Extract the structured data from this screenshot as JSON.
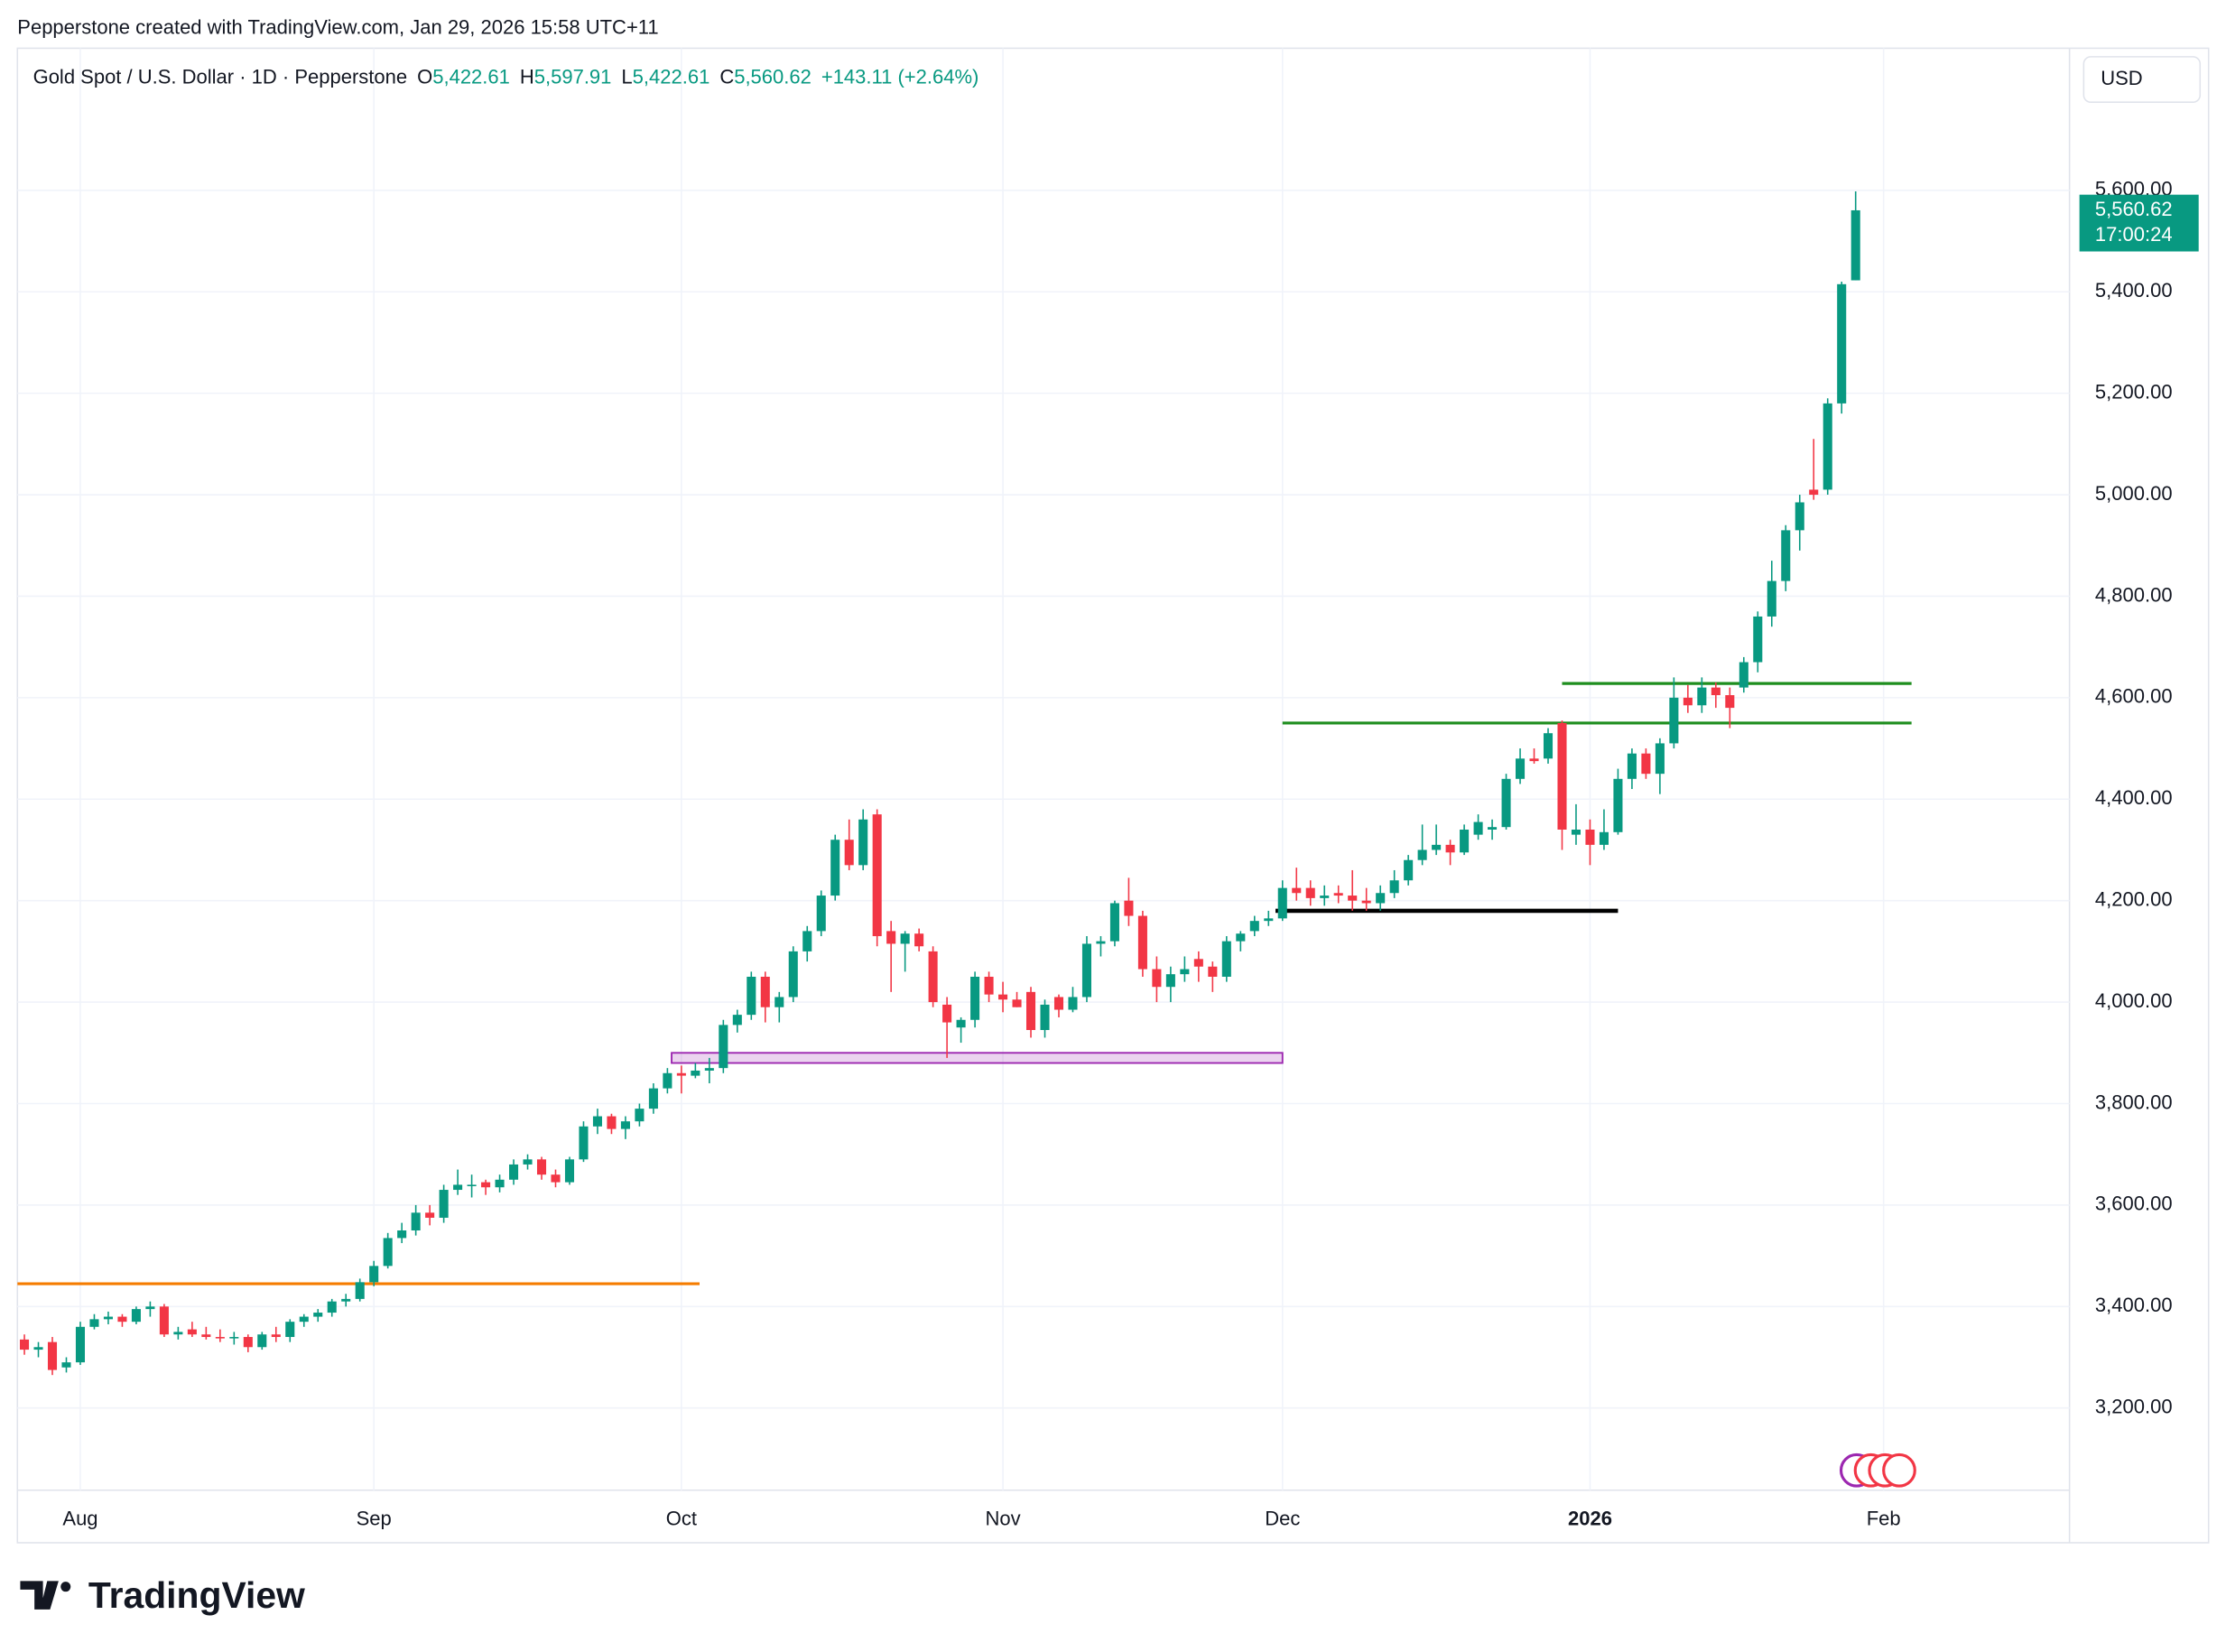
{
  "chart_data": {
    "type": "candlestick",
    "attribution": "Pepperstone created with TradingView.com, Jan 29, 2026 15:58 UTC+11",
    "title": "Gold Spot / U.S. Dollar · 1D · Pepperstone",
    "legend": {
      "open_label": "O",
      "open": "5,422.61",
      "high_label": "H",
      "high": "5,597.91",
      "low_label": "L",
      "low": "5,422.61",
      "close_label": "C",
      "close": "5,560.62",
      "change": "+143.11 (+2.64%)"
    },
    "currency": "USD",
    "last_price": {
      "value": 5560.62,
      "label": "5,560.62"
    },
    "countdown": "17:00:24",
    "brand": "TradingView",
    "up_color": "#089981",
    "down_color": "#f23645",
    "open": [
      3335,
      3315,
      3330,
      3280,
      3290,
      3360,
      3375,
      3380,
      3370,
      3395,
      3400,
      3345,
      3355,
      3345,
      3340,
      3338,
      3340,
      3320,
      3345,
      3340,
      3370,
      3380,
      3388,
      3410,
      3415,
      3448,
      3480,
      3535,
      3550,
      3585,
      3575,
      3630,
      3640,
      3645,
      3635,
      3650,
      3680,
      3690,
      3660,
      3645,
      3690,
      3755,
      3775,
      3750,
      3765,
      3790,
      3830,
      3860,
      3855,
      3865,
      3870,
      3955,
      3975,
      4050,
      3990,
      4010,
      4100,
      4140,
      4210,
      4320,
      4270,
      4370,
      4140,
      4115,
      4135,
      4100,
      3995,
      3950,
      3965,
      4050,
      4015,
      4005,
      4020,
      3945,
      4010,
      3985,
      4010,
      4115,
      4120,
      4200,
      4170,
      4065,
      4030,
      4055,
      4085,
      4070,
      4050,
      4120,
      4140,
      4160,
      4165,
      4225,
      4225,
      4205,
      4215,
      4210,
      4200,
      4195,
      4215,
      4240,
      4280,
      4300,
      4310,
      4295,
      4330,
      4340,
      4345,
      4440,
      4480,
      4480,
      4550,
      4330,
      4340,
      4310,
      4335,
      4440,
      4490,
      4450,
      4510,
      4600,
      4585,
      4620,
      4605,
      4620,
      4670,
      4760,
      4830,
      4930,
      5010,
      5010,
      5180,
      5422.61
    ],
    "high": [
      3345,
      3330,
      3340,
      3300,
      3370,
      3385,
      3390,
      3385,
      3400,
      3410,
      3405,
      3360,
      3370,
      3360,
      3355,
      3350,
      3345,
      3350,
      3360,
      3375,
      3385,
      3395,
      3415,
      3425,
      3455,
      3490,
      3545,
      3565,
      3600,
      3600,
      3640,
      3670,
      3660,
      3650,
      3660,
      3690,
      3700,
      3695,
      3670,
      3695,
      3765,
      3790,
      3780,
      3775,
      3800,
      3840,
      3870,
      3875,
      3880,
      3890,
      3965,
      3985,
      4060,
      4060,
      4020,
      4110,
      4150,
      4220,
      4330,
      4360,
      4380,
      4380,
      4160,
      4140,
      4145,
      4110,
      4010,
      3970,
      4060,
      4060,
      4040,
      4020,
      4030,
      4005,
      4015,
      4030,
      4130,
      4130,
      4200,
      4245,
      4180,
      4090,
      4070,
      4090,
      4100,
      4080,
      4130,
      4140,
      4170,
      4180,
      4240,
      4265,
      4240,
      4230,
      4230,
      4260,
      4225,
      4230,
      4260,
      4290,
      4350,
      4350,
      4320,
      4350,
      4370,
      4360,
      4450,
      4500,
      4500,
      4540,
      4555,
      4390,
      4360,
      4380,
      4460,
      4500,
      4500,
      4520,
      4640,
      4625,
      4640,
      4630,
      4620,
      4680,
      4770,
      4870,
      4940,
      5000,
      5110,
      5190,
      5420,
      5597.91
    ],
    "low": [
      3305,
      3300,
      3265,
      3270,
      3285,
      3355,
      3365,
      3360,
      3365,
      3380,
      3340,
      3335,
      3340,
      3335,
      3330,
      3325,
      3310,
      3315,
      3330,
      3330,
      3360,
      3370,
      3380,
      3400,
      3410,
      3440,
      3475,
      3525,
      3540,
      3560,
      3565,
      3620,
      3615,
      3620,
      3625,
      3640,
      3670,
      3650,
      3635,
      3640,
      3685,
      3740,
      3740,
      3730,
      3755,
      3780,
      3820,
      3820,
      3850,
      3840,
      3860,
      3940,
      3965,
      3960,
      3960,
      4000,
      4080,
      4130,
      4200,
      4260,
      4260,
      4110,
      4020,
      4060,
      4100,
      3990,
      3890,
      3920,
      3950,
      4000,
      3980,
      3990,
      3930,
      3930,
      3970,
      3980,
      4000,
      4090,
      4110,
      4150,
      4050,
      4000,
      4000,
      4040,
      4040,
      4020,
      4040,
      4100,
      4130,
      4150,
      4160,
      4200,
      4190,
      4190,
      4195,
      4180,
      4180,
      4180,
      4205,
      4230,
      4270,
      4290,
      4270,
      4290,
      4320,
      4320,
      4340,
      4430,
      4470,
      4470,
      4300,
      4310,
      4270,
      4300,
      4330,
      4420,
      4440,
      4410,
      4500,
      4570,
      4570,
      4580,
      4540,
      4610,
      4650,
      4740,
      4810,
      4890,
      4990,
      5000,
      5160,
      5422.61
    ],
    "close": [
      3315,
      3320,
      3275,
      3290,
      3360,
      3375,
      3380,
      3370,
      3395,
      3400,
      3345,
      3350,
      3345,
      3340,
      3338,
      3340,
      3320,
      3345,
      3340,
      3370,
      3380,
      3388,
      3410,
      3415,
      3448,
      3480,
      3535,
      3550,
      3585,
      3575,
      3630,
      3640,
      3640,
      3635,
      3650,
      3680,
      3690,
      3660,
      3645,
      3690,
      3755,
      3775,
      3750,
      3765,
      3790,
      3830,
      3860,
      3855,
      3865,
      3870,
      3955,
      3975,
      4050,
      3990,
      4010,
      4100,
      4140,
      4210,
      4320,
      4270,
      4360,
      4130,
      4115,
      4135,
      4110,
      4000,
      3960,
      3965,
      4050,
      4015,
      4005,
      3990,
      3945,
      3995,
      3985,
      4010,
      4115,
      4120,
      4195,
      4170,
      4065,
      4030,
      4055,
      4065,
      4070,
      4050,
      4120,
      4135,
      4160,
      4165,
      4225,
      4215,
      4205,
      4210,
      4210,
      4200,
      4195,
      4215,
      4240,
      4280,
      4300,
      4310,
      4295,
      4340,
      4355,
      4345,
      4440,
      4480,
      4475,
      4530,
      4340,
      4340,
      4310,
      4335,
      4440,
      4490,
      4450,
      4510,
      4600,
      4585,
      4620,
      4605,
      4580,
      4670,
      4760,
      4830,
      4930,
      4985,
      5000,
      5180,
      5415,
      5560.62
    ],
    "xlim": [
      -0.5,
      146.3
    ],
    "xticks": [
      {
        "value": 4,
        "label": "Aug"
      },
      {
        "value": 25,
        "label": "Sep"
      },
      {
        "value": 47,
        "label": "Oct"
      },
      {
        "value": 70,
        "label": "Nov"
      },
      {
        "value": 90,
        "label": "Dec"
      },
      {
        "value": 112,
        "label": "2026"
      },
      {
        "value": 133,
        "label": "Feb"
      }
    ],
    "ylim": [
      3038,
      5880
    ],
    "yticks": [
      {
        "value": 3200,
        "label": "3,200.00"
      },
      {
        "value": 3400,
        "label": "3,400.00"
      },
      {
        "value": 3600,
        "label": "3,600.00"
      },
      {
        "value": 3800,
        "label": "3,800.00"
      },
      {
        "value": 4000,
        "label": "4,000.00"
      },
      {
        "value": 4200,
        "label": "4,200.00"
      },
      {
        "value": 4400,
        "label": "4,400.00"
      },
      {
        "value": 4600,
        "label": "4,600.00"
      },
      {
        "value": 4800,
        "label": "4,800.00"
      },
      {
        "value": 5000,
        "label": "5,000.00"
      },
      {
        "value": 5200,
        "label": "5,200.00"
      },
      {
        "value": 5400,
        "label": "5,400.00"
      },
      {
        "value": 5600,
        "label": "5,600.00"
      }
    ],
    "grid": true,
    "drawings": [
      {
        "kind": "hline",
        "value": 3445,
        "from": -0.5,
        "to": 48.3,
        "color": "#f57c00"
      },
      {
        "kind": "box",
        "values": [
          3880,
          3900
        ],
        "from": 46.3,
        "to": 90,
        "color": "#9c27b0"
      },
      {
        "kind": "hline",
        "value": 4180,
        "from": 89.5,
        "to": 114,
        "color": "#000000"
      },
      {
        "kind": "hline",
        "value": 4550,
        "from": 90,
        "to": 135,
        "color": "#1e8e1e"
      },
      {
        "kind": "hline",
        "value": 4628,
        "from": 110,
        "to": 135,
        "color": "#1e8e1e"
      }
    ]
  }
}
